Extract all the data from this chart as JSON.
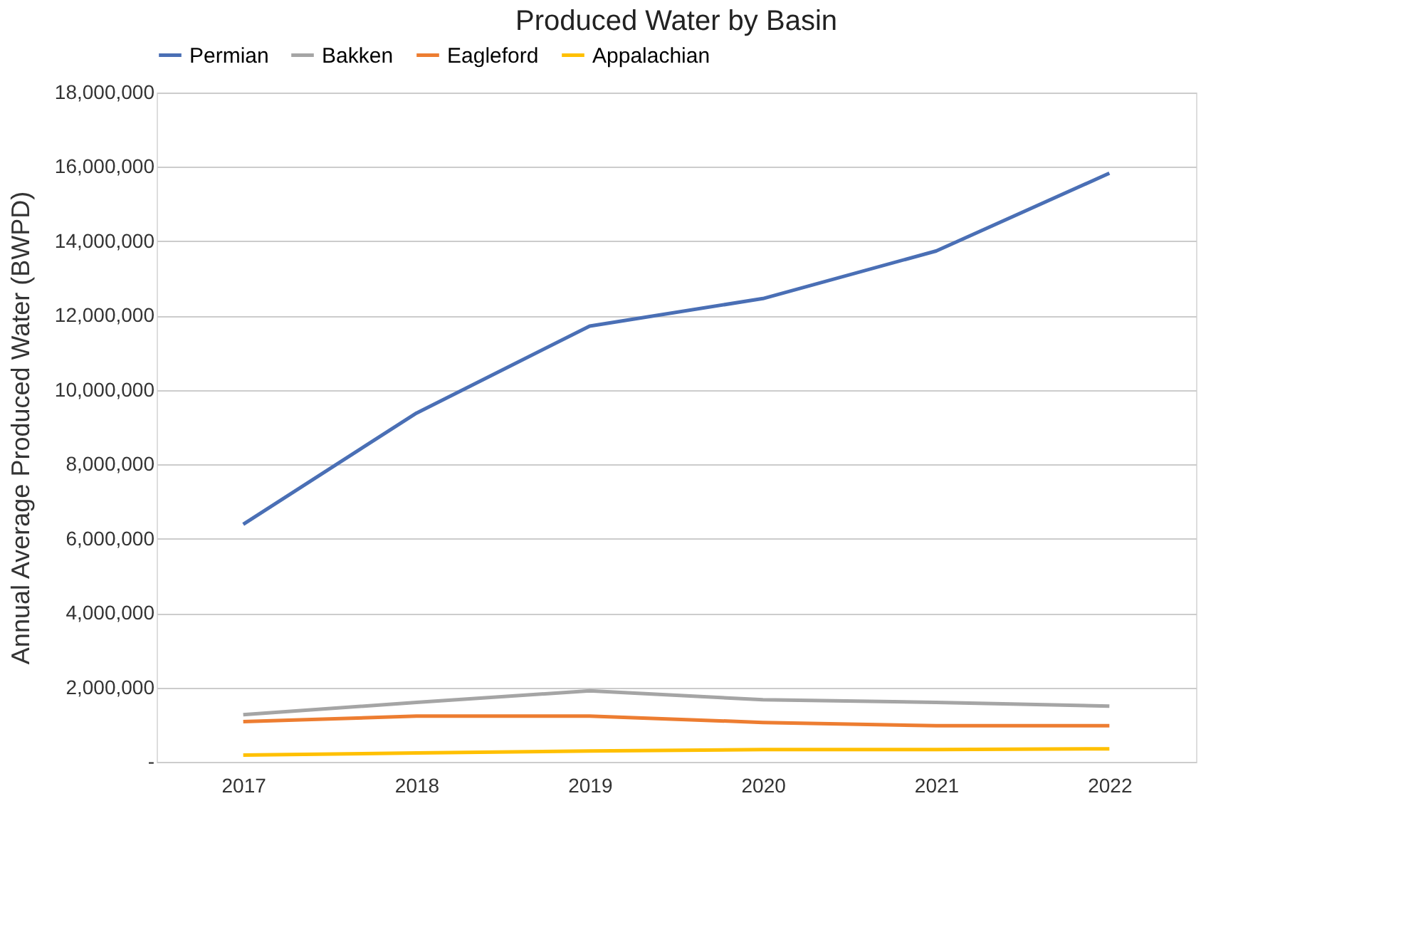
{
  "chart_data": {
    "type": "line",
    "title": "Produced Water by Basin",
    "ylabel": "Annual Average Produced Water (BWPD)",
    "categories": [
      "2017",
      "2018",
      "2019",
      "2020",
      "2021",
      "2022"
    ],
    "series": [
      {
        "name": "Permian",
        "color": "#4a6fb5",
        "values": [
          6390000,
          9380000,
          11720000,
          12460000,
          13740000,
          15830000
        ]
      },
      {
        "name": "Bakken",
        "color": "#a5a5a5",
        "values": [
          1270000,
          1600000,
          1910000,
          1670000,
          1600000,
          1500000
        ]
      },
      {
        "name": "Eagleford",
        "color": "#ed7d31",
        "values": [
          1080000,
          1230000,
          1230000,
          1060000,
          970000,
          970000
        ]
      },
      {
        "name": "Appalachian",
        "color": "#ffc000",
        "values": [
          180000,
          240000,
          290000,
          330000,
          330000,
          350000
        ]
      }
    ],
    "ylim": [
      0,
      18000000
    ],
    "yticks": [
      {
        "value": 0,
        "label": "-"
      },
      {
        "value": 2000000,
        "label": "2,000,000"
      },
      {
        "value": 4000000,
        "label": "4,000,000"
      },
      {
        "value": 6000000,
        "label": "6,000,000"
      },
      {
        "value": 8000000,
        "label": "8,000,000"
      },
      {
        "value": 10000000,
        "label": "10,000,000"
      },
      {
        "value": 12000000,
        "label": "12,000,000"
      },
      {
        "value": 14000000,
        "label": "14,000,000"
      },
      {
        "value": 16000000,
        "label": "16,000,000"
      },
      {
        "value": 18000000,
        "label": "18,000,000"
      }
    ],
    "grid": "y",
    "legend": "top",
    "marker": "none",
    "line_style": "solid"
  }
}
